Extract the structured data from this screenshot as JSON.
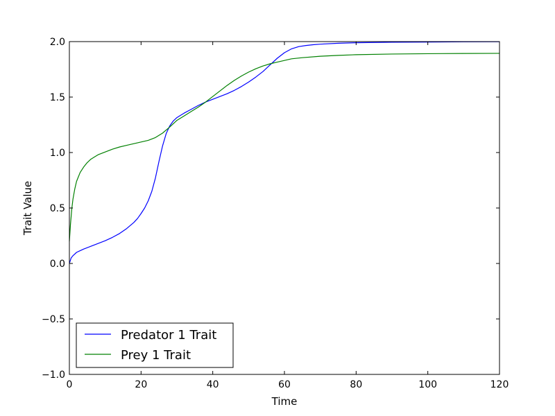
{
  "chart_data": {
    "type": "line",
    "xlabel": "Time",
    "ylabel": "Trait Value",
    "xlim": [
      0,
      120
    ],
    "ylim": [
      -1.0,
      2.0
    ],
    "xticks": [
      0,
      20,
      40,
      60,
      80,
      100,
      120
    ],
    "xtick_labels": [
      "0",
      "20",
      "40",
      "60",
      "80",
      "100",
      "120"
    ],
    "yticks": [
      -1.0,
      -0.5,
      0.0,
      0.5,
      1.0,
      1.5,
      2.0
    ],
    "ytick_labels": [
      "−1.0",
      "−0.5",
      "0.0",
      "0.5",
      "1.0",
      "1.5",
      "2.0"
    ],
    "grid": false,
    "legend_position": "lower-left",
    "series": [
      {
        "name": "Predator 1 Trait",
        "color": "#0000ff",
        "points": [
          [
            0,
            0.0
          ],
          [
            0.5,
            0.05
          ],
          [
            1,
            0.07
          ],
          [
            2,
            0.1
          ],
          [
            3,
            0.115
          ],
          [
            4,
            0.13
          ],
          [
            6,
            0.155
          ],
          [
            8,
            0.18
          ],
          [
            10,
            0.205
          ],
          [
            12,
            0.235
          ],
          [
            14,
            0.27
          ],
          [
            16,
            0.315
          ],
          [
            18,
            0.37
          ],
          [
            19,
            0.405
          ],
          [
            20,
            0.45
          ],
          [
            21,
            0.5
          ],
          [
            22,
            0.565
          ],
          [
            23,
            0.65
          ],
          [
            24,
            0.77
          ],
          [
            25,
            0.92
          ],
          [
            26,
            1.06
          ],
          [
            27,
            1.17
          ],
          [
            28,
            1.24
          ],
          [
            29,
            1.285
          ],
          [
            30,
            1.315
          ],
          [
            31,
            1.335
          ],
          [
            32,
            1.355
          ],
          [
            34,
            1.39
          ],
          [
            36,
            1.425
          ],
          [
            38,
            1.455
          ],
          [
            40,
            1.48
          ],
          [
            42,
            1.505
          ],
          [
            44,
            1.53
          ],
          [
            46,
            1.56
          ],
          [
            48,
            1.595
          ],
          [
            50,
            1.635
          ],
          [
            52,
            1.68
          ],
          [
            54,
            1.73
          ],
          [
            56,
            1.79
          ],
          [
            58,
            1.85
          ],
          [
            60,
            1.9
          ],
          [
            62,
            1.935
          ],
          [
            64,
            1.955
          ],
          [
            66,
            1.965
          ],
          [
            68,
            1.972
          ],
          [
            70,
            1.977
          ],
          [
            75,
            1.985
          ],
          [
            80,
            1.99
          ],
          [
            90,
            1.994
          ],
          [
            100,
            1.996
          ],
          [
            110,
            1.998
          ],
          [
            120,
            1.999
          ]
        ]
      },
      {
        "name": "Prey 1 Trait",
        "color": "#008000",
        "points": [
          [
            0,
            0.2
          ],
          [
            0.3,
            0.35
          ],
          [
            0.7,
            0.5
          ],
          [
            1,
            0.58
          ],
          [
            1.5,
            0.67
          ],
          [
            2,
            0.74
          ],
          [
            3,
            0.82
          ],
          [
            4,
            0.87
          ],
          [
            5,
            0.91
          ],
          [
            6,
            0.94
          ],
          [
            7,
            0.96
          ],
          [
            8,
            0.98
          ],
          [
            10,
            1.005
          ],
          [
            12,
            1.03
          ],
          [
            14,
            1.05
          ],
          [
            16,
            1.065
          ],
          [
            18,
            1.08
          ],
          [
            20,
            1.095
          ],
          [
            22,
            1.11
          ],
          [
            24,
            1.135
          ],
          [
            26,
            1.175
          ],
          [
            28,
            1.23
          ],
          [
            30,
            1.29
          ],
          [
            32,
            1.33
          ],
          [
            34,
            1.37
          ],
          [
            36,
            1.41
          ],
          [
            38,
            1.455
          ],
          [
            40,
            1.505
          ],
          [
            42,
            1.555
          ],
          [
            44,
            1.605
          ],
          [
            46,
            1.65
          ],
          [
            48,
            1.69
          ],
          [
            50,
            1.725
          ],
          [
            52,
            1.755
          ],
          [
            54,
            1.78
          ],
          [
            56,
            1.8
          ],
          [
            58,
            1.815
          ],
          [
            60,
            1.83
          ],
          [
            62,
            1.845
          ],
          [
            65,
            1.855
          ],
          [
            70,
            1.868
          ],
          [
            75,
            1.876
          ],
          [
            80,
            1.882
          ],
          [
            90,
            1.888
          ],
          [
            100,
            1.891
          ],
          [
            110,
            1.893
          ],
          [
            120,
            1.894
          ]
        ]
      }
    ]
  }
}
